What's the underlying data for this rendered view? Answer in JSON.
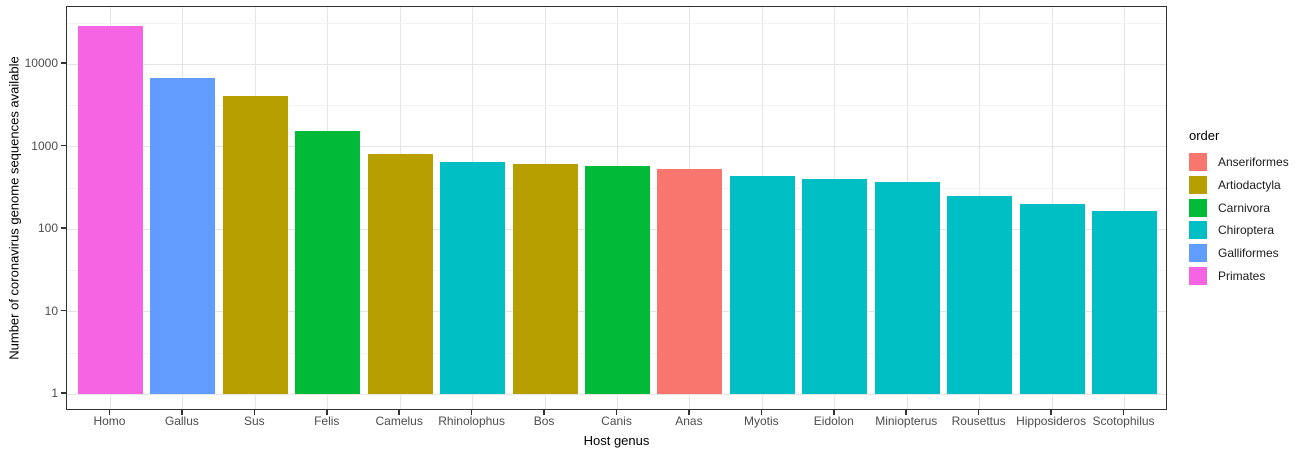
{
  "chart_data": {
    "type": "bar",
    "title": "",
    "xlabel": "Host genus",
    "ylabel": "Number of coronavirus genome sequences available",
    "y_scale": "log10",
    "y_ticks": [
      1,
      10,
      100,
      1000,
      10000
    ],
    "y_tick_labels": [
      "1",
      "10",
      "100",
      "1000",
      "10000"
    ],
    "grid": {
      "major": true,
      "minor": true
    },
    "categories": [
      "Homo",
      "Gallus",
      "Sus",
      "Felis",
      "Camelus",
      "Rhinolophus",
      "Bos",
      "Canis",
      "Anas",
      "Myotis",
      "Eidolon",
      "Miniopterus",
      "Rousettus",
      "Hipposideros",
      "Scotophilus"
    ],
    "values": [
      29000,
      6800,
      4100,
      1550,
      800,
      650,
      620,
      580,
      535,
      440,
      400,
      370,
      250,
      200,
      165
    ],
    "bar_orders": [
      "Primates",
      "Galliformes",
      "Artiodactyla",
      "Carnivora",
      "Artiodactyla",
      "Chiroptera",
      "Artiodactyla",
      "Carnivora",
      "Anseriformes",
      "Chiroptera",
      "Chiroptera",
      "Chiroptera",
      "Chiroptera",
      "Chiroptera",
      "Chiroptera"
    ],
    "legend": {
      "title": "order",
      "position": "right",
      "entries": [
        {
          "label": "Anseriformes",
          "color": "#F8766D"
        },
        {
          "label": "Artiodactyla",
          "color": "#B79F00"
        },
        {
          "label": "Carnivora",
          "color": "#00BA38"
        },
        {
          "label": "Chiroptera",
          "color": "#00BFC4"
        },
        {
          "label": "Galliformes",
          "color": "#619CFF"
        },
        {
          "label": "Primates",
          "color": "#F564E3"
        }
      ]
    },
    "colors": {
      "background": "#FFFFFF",
      "panel_border": "#333333",
      "major_grid": "#E5E5E5",
      "minor_grid": "#F2F2F2",
      "tick_mark": "#333333",
      "axis_text": "#4D4D4D",
      "axis_title": "#000000"
    }
  }
}
